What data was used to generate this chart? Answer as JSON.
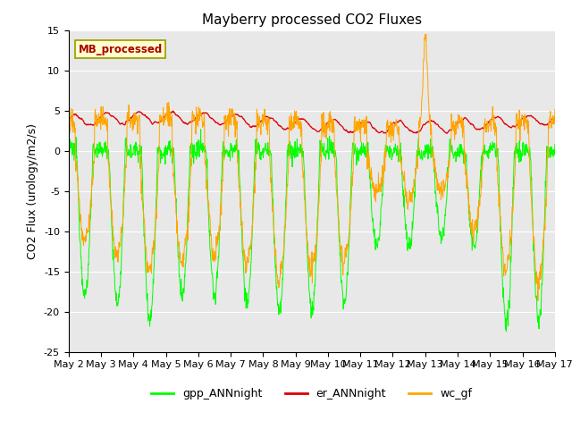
{
  "title": "Mayberry processed CO2 Fluxes",
  "ylabel": "CO2 Flux (urology/m2/s)",
  "ylim": [
    -25,
    15
  ],
  "yticks": [
    -25,
    -20,
    -15,
    -10,
    -5,
    0,
    5,
    10,
    15
  ],
  "xtick_labels": [
    "May 2",
    "May 3",
    "May 4",
    "May 5",
    "May 6",
    "May 7",
    "May 8",
    "May 9",
    "May 10",
    "May 11",
    "May 12",
    "May 13",
    "May 14",
    "May 15",
    "May 16",
    "May 17"
  ],
  "legend_label": "MB_processed",
  "series_labels": [
    "gpp_ANNnight",
    "er_ANNnight",
    "wc_gf"
  ],
  "series_colors": [
    "#00ff00",
    "#dd0000",
    "#ffa500"
  ],
  "background_color": "#e8e8e8",
  "title_fontsize": 11,
  "label_fontsize": 9,
  "tick_fontsize": 8,
  "legend_fontsize": 9,
  "n_days": 15,
  "pts_per_day": 96
}
